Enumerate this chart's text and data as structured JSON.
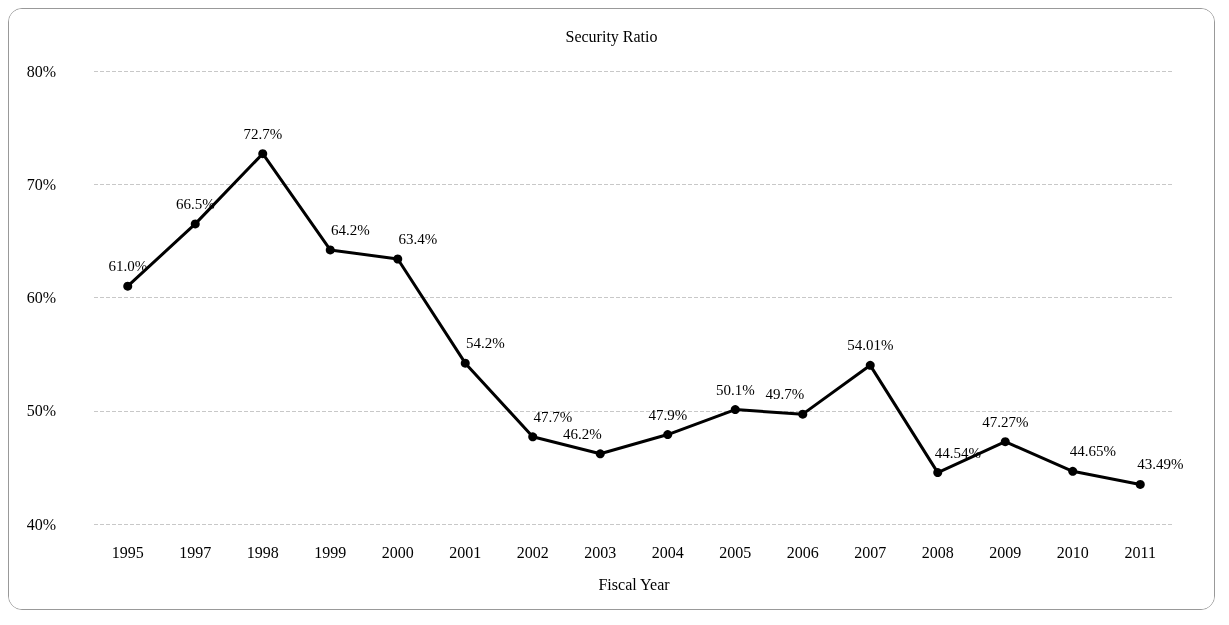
{
  "chart_data": {
    "type": "line",
    "title": "Security Ratio",
    "xlabel": "Fiscal Year",
    "categories": [
      "1995",
      "1997",
      "1998",
      "1999",
      "2000",
      "2001",
      "2002",
      "2003",
      "2004",
      "2005",
      "2006",
      "2007",
      "2008",
      "2009",
      "2010",
      "2011"
    ],
    "series": [
      {
        "color": "#000000",
        "values": [
          61.0,
          66.5,
          72.7,
          64.2,
          63.4,
          54.2,
          47.7,
          46.2,
          47.9,
          50.1,
          49.7,
          54.01,
          44.54,
          47.27,
          44.65,
          43.49
        ],
        "value_labels": [
          "61.0%",
          "66.5%",
          "72.7%",
          "64.2%",
          "63.4%",
          "54.2%",
          "47.7%",
          "46.2%",
          "47.9%",
          "50.1%",
          "49.7%",
          "54.01%",
          "44.54%",
          "47.27%",
          "44.65%",
          "43.49%"
        ]
      }
    ],
    "ylim": [
      40,
      80
    ],
    "yticks": [
      {
        "value": 40,
        "label": "40%"
      },
      {
        "value": 50,
        "label": "50%"
      },
      {
        "value": 60,
        "label": "60%"
      },
      {
        "value": 70,
        "label": "70%"
      },
      {
        "value": 80,
        "label": "80%"
      }
    ],
    "grid": "y",
    "marker": "circle",
    "line_style": "solid"
  }
}
